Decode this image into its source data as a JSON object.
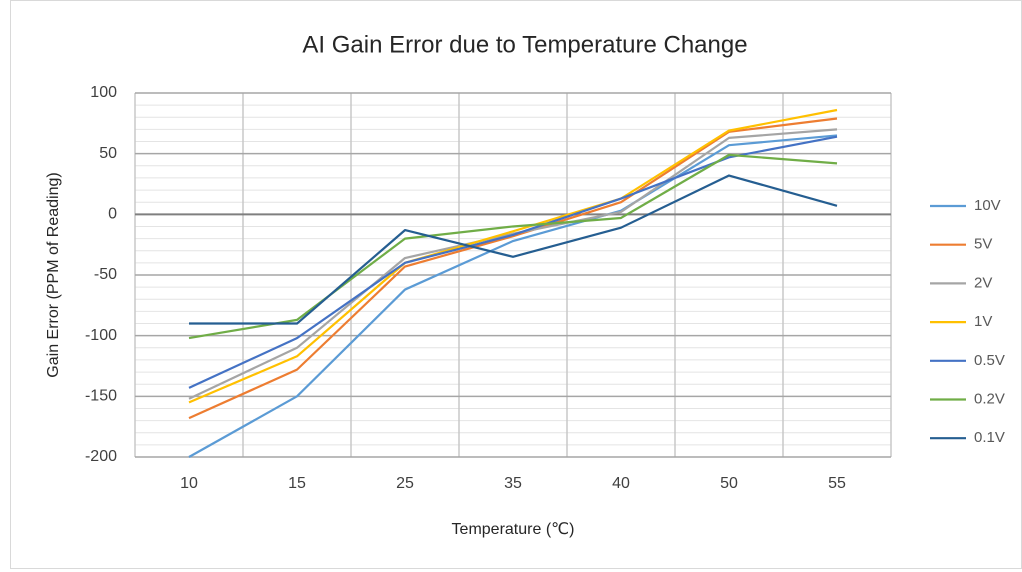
{
  "chart_data": {
    "type": "line",
    "title": "AI Gain Error due to Temperature Change",
    "x_label": "Temperature (℃)",
    "y_label": "Gain Error (PPM of Reading)",
    "categories": [
      "10",
      "15",
      "25",
      "35",
      "40",
      "50",
      "55"
    ],
    "ylim": [
      -200,
      100
    ],
    "yticks": [
      -200,
      -150,
      -100,
      -50,
      0,
      50,
      100
    ],
    "yminor_ticks": [
      -190,
      -180,
      -170,
      -160,
      -140,
      -130,
      -120,
      -110,
      -90,
      -80,
      -70,
      -60,
      -40,
      -30,
      -20,
      -10,
      10,
      20,
      30,
      40,
      60,
      70,
      80,
      90
    ],
    "grid": true,
    "legend": "right",
    "series": [
      {
        "name": "10V",
        "color": "#5b9bd5",
        "values": [
          -200,
          -150,
          -62,
          -22,
          3,
          57,
          65
        ]
      },
      {
        "name": "5V",
        "color": "#ed7d31",
        "values": [
          -168,
          -128,
          -43,
          -18,
          10,
          68,
          79
        ]
      },
      {
        "name": "2V",
        "color": "#a5a5a5",
        "values": [
          -152,
          -110,
          -36,
          -16,
          2,
          63,
          70
        ]
      },
      {
        "name": "1V",
        "color": "#ffc000",
        "values": [
          -155,
          -117,
          -40,
          -14,
          13,
          69,
          86
        ]
      },
      {
        "name": "0.5V",
        "color": "#4472c4",
        "values": [
          -143,
          -102,
          -40,
          -17,
          13,
          47,
          64
        ]
      },
      {
        "name": "0.2V",
        "color": "#70ad47",
        "values": [
          -102,
          -87,
          -20,
          -10,
          -3,
          49,
          42
        ]
      },
      {
        "name": "0.1V",
        "color": "#255e91",
        "values": [
          -90,
          -90,
          -13,
          -35,
          -11,
          32,
          7
        ]
      }
    ]
  }
}
